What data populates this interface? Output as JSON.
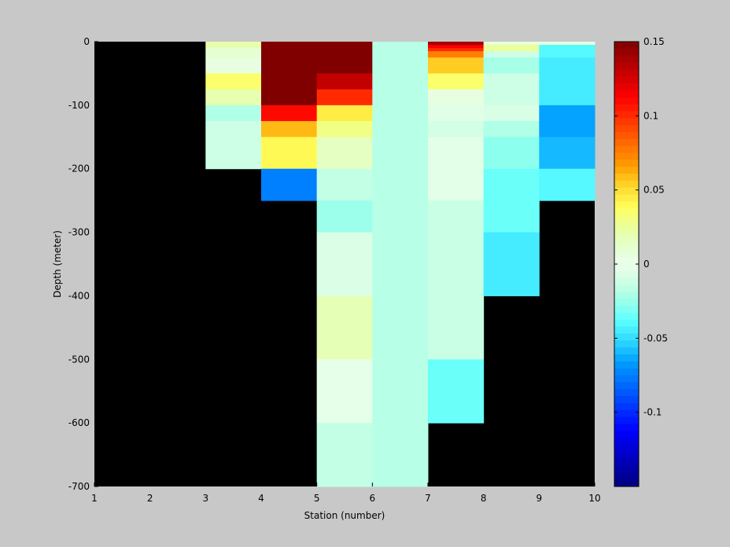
{
  "chart_data": {
    "type": "heatmap",
    "title": "",
    "xlabel": "Station (number)",
    "ylabel": "Depth (meter)",
    "xlim": [
      1,
      10
    ],
    "ylim": [
      -700,
      0
    ],
    "xticks": [
      1,
      2,
      3,
      4,
      5,
      6,
      7,
      8,
      9,
      10
    ],
    "yticks": [
      0,
      -100,
      -200,
      -300,
      -400,
      -500,
      -600,
      -700
    ],
    "background_color": "#000000",
    "colorbar": {
      "colormap": "jet-like",
      "clim": [
        -0.15,
        0.15
      ],
      "ticks": [
        0.15,
        0.1,
        0.05,
        0,
        -0.05,
        -0.1
      ],
      "tick_labels": [
        "0.15",
        "0.1",
        "0.05",
        "0",
        "-0.05",
        "-0.1"
      ]
    },
    "columns": [
      {
        "x": [
          3,
          4
        ],
        "cells": [
          {
            "top": 0,
            "bottom": -10,
            "value": 0.02
          },
          {
            "top": -10,
            "bottom": -25,
            "value": 0.01
          },
          {
            "top": -25,
            "bottom": -50,
            "value": 0.005
          },
          {
            "top": -50,
            "bottom": -75,
            "value": 0.035
          },
          {
            "top": -75,
            "bottom": -100,
            "value": 0.02
          },
          {
            "top": -100,
            "bottom": -125,
            "value": -0.02
          },
          {
            "top": -125,
            "bottom": -200,
            "value": -0.012
          }
        ]
      },
      {
        "x": [
          4,
          5
        ],
        "cells": [
          {
            "top": 0,
            "bottom": -100,
            "value": 0.15
          },
          {
            "top": -100,
            "bottom": -125,
            "value": 0.11
          },
          {
            "top": -125,
            "bottom": -150,
            "value": 0.06
          },
          {
            "top": -150,
            "bottom": -200,
            "value": 0.04
          },
          {
            "top": -200,
            "bottom": -250,
            "value": -0.075
          }
        ]
      },
      {
        "x": [
          5,
          6
        ],
        "cells": [
          {
            "top": 0,
            "bottom": -50,
            "value": 0.15
          },
          {
            "top": -50,
            "bottom": -75,
            "value": 0.13
          },
          {
            "top": -75,
            "bottom": -100,
            "value": 0.1
          },
          {
            "top": -100,
            "bottom": -125,
            "value": 0.045
          },
          {
            "top": -125,
            "bottom": -150,
            "value": 0.03
          },
          {
            "top": -150,
            "bottom": -200,
            "value": 0.015
          },
          {
            "top": -200,
            "bottom": -250,
            "value": -0.015
          },
          {
            "top": -250,
            "bottom": -300,
            "value": -0.025
          },
          {
            "top": -300,
            "bottom": -400,
            "value": -0.007
          },
          {
            "top": -400,
            "bottom": -500,
            "value": 0.018
          },
          {
            "top": -500,
            "bottom": -600,
            "value": -0.003
          },
          {
            "top": -600,
            "bottom": -700,
            "value": -0.015
          }
        ]
      },
      {
        "x": [
          6,
          7
        ],
        "cells": [
          {
            "top": 0,
            "bottom": -700,
            "value": -0.018
          }
        ]
      },
      {
        "x": [
          7,
          8
        ],
        "cells": [
          {
            "top": 0,
            "bottom": -5,
            "value": 0.14
          },
          {
            "top": -5,
            "bottom": -10,
            "value": 0.115
          },
          {
            "top": -10,
            "bottom": -15,
            "value": 0.1
          },
          {
            "top": -15,
            "bottom": -25,
            "value": 0.075
          },
          {
            "top": -25,
            "bottom": -50,
            "value": 0.055
          },
          {
            "top": -50,
            "bottom": -75,
            "value": 0.035
          },
          {
            "top": -75,
            "bottom": -100,
            "value": 0.005
          },
          {
            "top": -100,
            "bottom": -125,
            "value": -0.005
          },
          {
            "top": -125,
            "bottom": -150,
            "value": -0.01
          },
          {
            "top": -150,
            "bottom": -250,
            "value": -0.004
          },
          {
            "top": -250,
            "bottom": -500,
            "value": -0.013
          },
          {
            "top": -500,
            "bottom": -600,
            "value": -0.035
          }
        ]
      },
      {
        "x": [
          8,
          9
        ],
        "cells": [
          {
            "top": 0,
            "bottom": -5,
            "value": 0.005
          },
          {
            "top": -5,
            "bottom": -15,
            "value": 0.025
          },
          {
            "top": -15,
            "bottom": -25,
            "value": -0.012
          },
          {
            "top": -25,
            "bottom": -50,
            "value": -0.022
          },
          {
            "top": -50,
            "bottom": -100,
            "value": -0.012
          },
          {
            "top": -100,
            "bottom": -125,
            "value": -0.008
          },
          {
            "top": -125,
            "bottom": -150,
            "value": -0.02
          },
          {
            "top": -150,
            "bottom": -200,
            "value": -0.028
          },
          {
            "top": -200,
            "bottom": -300,
            "value": -0.035
          },
          {
            "top": -300,
            "bottom": -400,
            "value": -0.045
          }
        ]
      },
      {
        "x": [
          9,
          10
        ],
        "cells": [
          {
            "top": 0,
            "bottom": -5,
            "value": 0.005
          },
          {
            "top": -5,
            "bottom": -25,
            "value": -0.04
          },
          {
            "top": -25,
            "bottom": -50,
            "value": -0.045
          },
          {
            "top": -50,
            "bottom": -100,
            "value": -0.045
          },
          {
            "top": -100,
            "bottom": -150,
            "value": -0.065
          },
          {
            "top": -150,
            "bottom": -200,
            "value": -0.06
          },
          {
            "top": -200,
            "bottom": -250,
            "value": -0.04
          }
        ]
      }
    ]
  }
}
